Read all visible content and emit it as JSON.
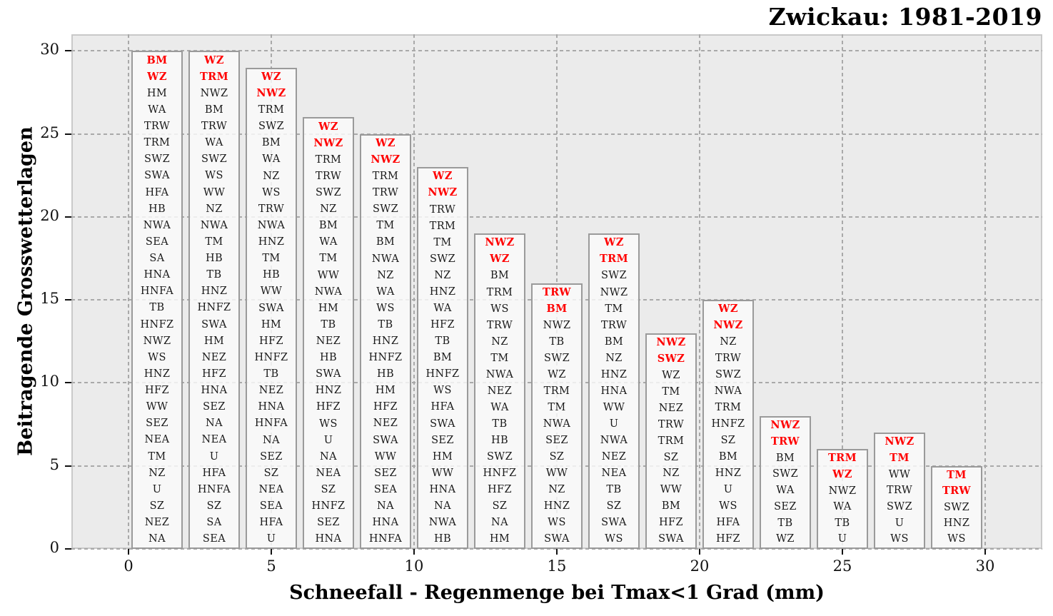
{
  "page": {
    "title": "Zwickau: 1981-2019"
  },
  "colors": {
    "highlight": "#ff0000",
    "label": "#1a1a1a",
    "panel_bg": "#ebebeb",
    "bar_border": "#9a9a9a",
    "gridline": "#a9a9a9"
  },
  "chart_data": {
    "type": "bar",
    "title": "Zwickau: 1981-2019",
    "xlabel": "Schneefall - Regenmenge bei Tmax<1 Grad (mm)",
    "ylabel": "Beitragende Grosswetterlagen",
    "xlim": [
      -2,
      32
    ],
    "ylim": [
      0,
      31
    ],
    "xticks": [
      0,
      5,
      10,
      15,
      20,
      25,
      30
    ],
    "yticks": [
      0,
      5,
      10,
      15,
      20,
      25,
      30
    ],
    "grid": true,
    "legend": false,
    "bar_width": 1.8,
    "bars": [
      {
        "x": 1,
        "value": 30,
        "n_highlighted": 2,
        "labels": [
          "BM",
          "WZ",
          "HM",
          "WA",
          "TRW",
          "TRM",
          "SWZ",
          "SWA",
          "HFA",
          "HB",
          "NWA",
          "SEA",
          "SA",
          "HNA",
          "HNFA",
          "TB",
          "HNFZ",
          "NWZ",
          "WS",
          "HNZ",
          "HFZ",
          "WW",
          "SEZ",
          "NEA",
          "TM",
          "NZ",
          "U",
          "SZ",
          "NEZ",
          "NA"
        ]
      },
      {
        "x": 3,
        "value": 30,
        "n_highlighted": 2,
        "labels": [
          "WZ",
          "TRM",
          "NWZ",
          "BM",
          "TRW",
          "WA",
          "SWZ",
          "WS",
          "WW",
          "NZ",
          "NWA",
          "TM",
          "HB",
          "TB",
          "HNZ",
          "HNFZ",
          "SWA",
          "HM",
          "NEZ",
          "HFZ",
          "HNA",
          "SEZ",
          "NA",
          "NEA",
          "U",
          "HFA",
          "HNFA",
          "SZ",
          "SA",
          "SEA"
        ]
      },
      {
        "x": 5,
        "value": 29,
        "n_highlighted": 2,
        "labels": [
          "WZ",
          "NWZ",
          "TRM",
          "SWZ",
          "BM",
          "WA",
          "NZ",
          "WS",
          "TRW",
          "NWA",
          "HNZ",
          "TM",
          "HB",
          "WW",
          "SWA",
          "HM",
          "HFZ",
          "HNFZ",
          "TB",
          "NEZ",
          "HNA",
          "HNFA",
          "NA",
          "SEZ",
          "SZ",
          "NEA",
          "SEA",
          "HFA",
          "U"
        ]
      },
      {
        "x": 7,
        "value": 26,
        "n_highlighted": 2,
        "labels": [
          "WZ",
          "NWZ",
          "TRM",
          "TRW",
          "SWZ",
          "NZ",
          "BM",
          "WA",
          "TM",
          "WW",
          "NWA",
          "HM",
          "TB",
          "NEZ",
          "HB",
          "SWA",
          "HNZ",
          "HFZ",
          "WS",
          "U",
          "NA",
          "NEA",
          "SZ",
          "HNFZ",
          "SEZ",
          "HNA"
        ]
      },
      {
        "x": 9,
        "value": 25,
        "n_highlighted": 2,
        "labels": [
          "WZ",
          "NWZ",
          "TRM",
          "TRW",
          "SWZ",
          "TM",
          "BM",
          "NWA",
          "NZ",
          "WA",
          "WS",
          "TB",
          "HNZ",
          "HNFZ",
          "HB",
          "HM",
          "HFZ",
          "NEZ",
          "SWA",
          "WW",
          "SEZ",
          "SEA",
          "NA",
          "HNA",
          "HNFA"
        ]
      },
      {
        "x": 11,
        "value": 23,
        "n_highlighted": 2,
        "labels": [
          "WZ",
          "NWZ",
          "TRW",
          "TRM",
          "TM",
          "SWZ",
          "NZ",
          "HNZ",
          "WA",
          "HFZ",
          "TB",
          "BM",
          "HNFZ",
          "WS",
          "HFA",
          "SWA",
          "SEZ",
          "HM",
          "WW",
          "HNA",
          "NA",
          "NWA",
          "HB"
        ]
      },
      {
        "x": 13,
        "value": 19,
        "n_highlighted": 2,
        "labels": [
          "NWZ",
          "WZ",
          "BM",
          "TRM",
          "WS",
          "TRW",
          "NZ",
          "TM",
          "NWA",
          "NEZ",
          "WA",
          "TB",
          "HB",
          "SWZ",
          "HNFZ",
          "HFZ",
          "SZ",
          "NA",
          "HM"
        ]
      },
      {
        "x": 15,
        "value": 16,
        "n_highlighted": 2,
        "labels": [
          "TRW",
          "BM",
          "NWZ",
          "TB",
          "SWZ",
          "WZ",
          "TRM",
          "TM",
          "NWA",
          "SEZ",
          "SZ",
          "WW",
          "NZ",
          "HNZ",
          "WS",
          "SWA"
        ]
      },
      {
        "x": 17,
        "value": 19,
        "n_highlighted": 2,
        "labels": [
          "WZ",
          "TRM",
          "SWZ",
          "NWZ",
          "TM",
          "TRW",
          "BM",
          "NZ",
          "HNZ",
          "HNA",
          "WW",
          "U",
          "NWA",
          "NEZ",
          "NEA",
          "TB",
          "SZ",
          "SWA",
          "WS"
        ]
      },
      {
        "x": 19,
        "value": 13,
        "n_highlighted": 2,
        "labels": [
          "NWZ",
          "SWZ",
          "WZ",
          "TM",
          "NEZ",
          "TRW",
          "TRM",
          "SZ",
          "NZ",
          "WW",
          "BM",
          "HFZ",
          "SWA"
        ]
      },
      {
        "x": 21,
        "value": 15,
        "n_highlighted": 2,
        "labels": [
          "WZ",
          "NWZ",
          "NZ",
          "TRW",
          "SWZ",
          "NWA",
          "TRM",
          "HNFZ",
          "SZ",
          "BM",
          "HNZ",
          "U",
          "WS",
          "HFA",
          "HFZ"
        ]
      },
      {
        "x": 23,
        "value": 8,
        "n_highlighted": 2,
        "labels": [
          "NWZ",
          "TRW",
          "BM",
          "SWZ",
          "WA",
          "SEZ",
          "TB",
          "WZ"
        ]
      },
      {
        "x": 25,
        "value": 6,
        "n_highlighted": 2,
        "labels": [
          "TRM",
          "WZ",
          "NWZ",
          "WA",
          "TB",
          "U"
        ]
      },
      {
        "x": 27,
        "value": 7,
        "n_highlighted": 2,
        "labels": [
          "NWZ",
          "TM",
          "WW",
          "TRW",
          "SWZ",
          "U",
          "WS"
        ]
      },
      {
        "x": 29,
        "value": 5,
        "n_highlighted": 2,
        "labels": [
          "TM",
          "TRW",
          "SWZ",
          "HNZ",
          "WS"
        ]
      }
    ]
  }
}
